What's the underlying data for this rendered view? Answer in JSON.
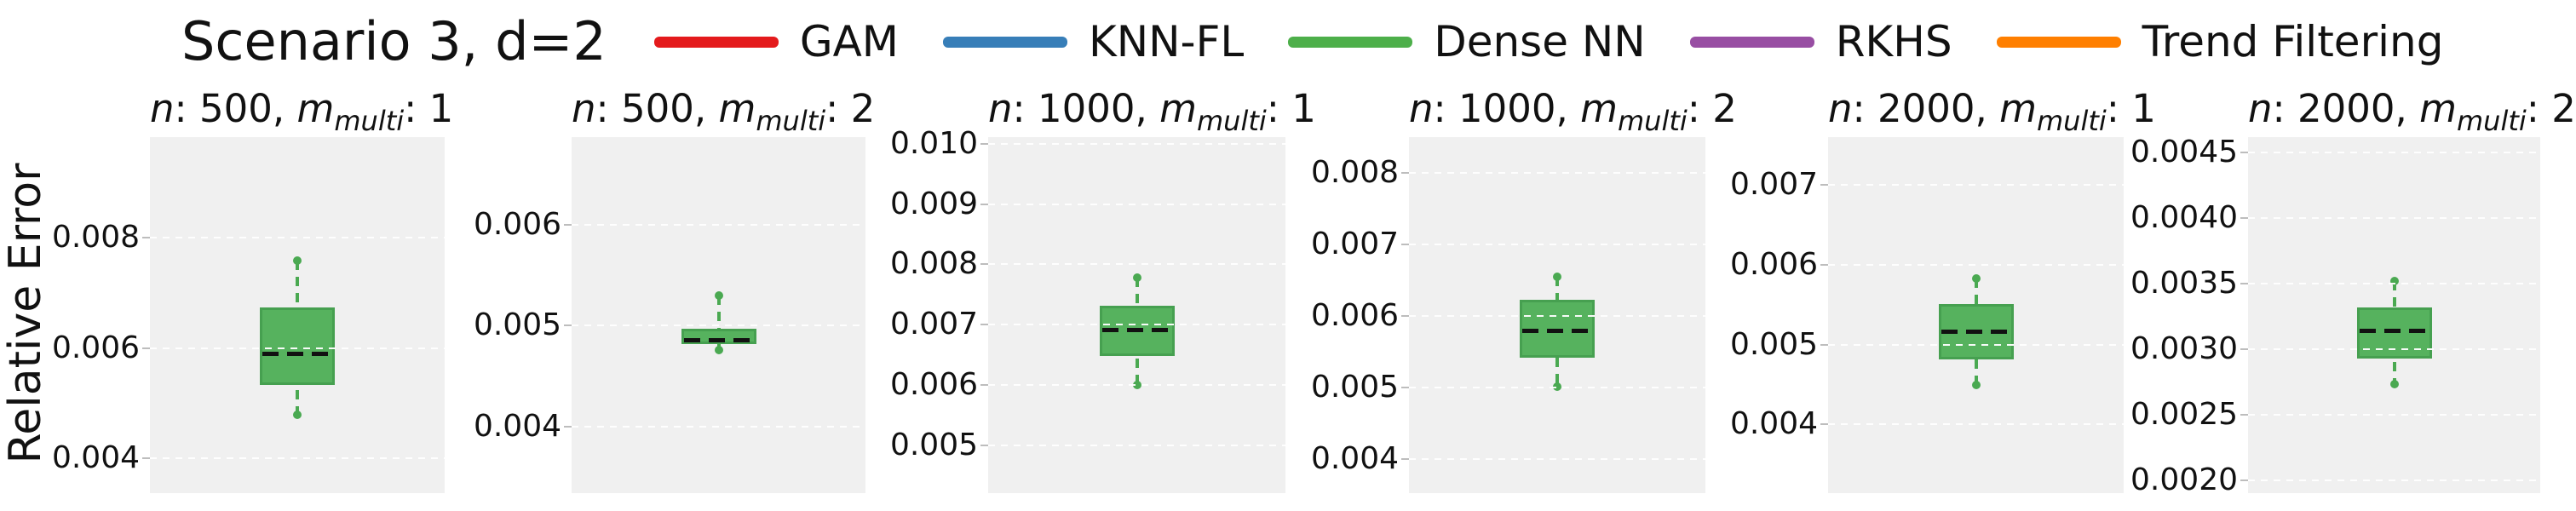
{
  "figure": {
    "title": "Scenario 3, d=2",
    "ylabel": "Relative Error",
    "legend": [
      {
        "label": "GAM",
        "color": "#e41a1c"
      },
      {
        "label": "KNN-FL",
        "color": "#377eb8"
      },
      {
        "label": "Dense NN",
        "color": "#4daf4a"
      },
      {
        "label": "RKHS",
        "color": "#984ea3"
      },
      {
        "label": "Trend Filtering",
        "color": "#ff7f00"
      }
    ],
    "tokens": {
      "n_label": "n",
      "m_label": "m",
      "m_sub": "multi",
      "sep_colon": ": ",
      "sep_comma": ", "
    }
  },
  "chart_data": {
    "type": "boxplot",
    "title": "Scenario 3, d=2",
    "ylabel": "Relative Error",
    "legend_entries": [
      "GAM",
      "KNN-FL",
      "Dense NN",
      "RKHS",
      "Trend Filtering"
    ],
    "visible_series": "Dense NN",
    "grid": true,
    "legend_position": "top",
    "colors": {
      "box_fill": "#56b25e",
      "box_edge": "#46a050",
      "whisker": "#4aa951",
      "median_dash": "#111111",
      "plot_bg": "#f0f0f0",
      "gridline": "#ffffff"
    },
    "subplots": [
      {
        "title": "n: 500, m_multi: 1",
        "n": "500",
        "m_multi": "1",
        "ylim": [
          0.00337,
          0.00982
        ],
        "yticks": [
          0.004,
          0.006,
          0.008
        ],
        "ytick_labels": [
          "0.004",
          "0.006",
          "0.008"
        ],
        "box": {
          "whislo": 0.00479,
          "q1": 0.00533,
          "med": 0.00589,
          "q3": 0.00673,
          "whishi": 0.00758
        }
      },
      {
        "title": "n: 500, m_multi: 2",
        "n": "500",
        "m_multi": "2",
        "ylim": [
          0.00334,
          0.00687
        ],
        "yticks": [
          0.004,
          0.005,
          0.006
        ],
        "ytick_labels": [
          "0.004",
          "0.005",
          "0.006"
        ],
        "box": {
          "whislo": 0.00476,
          "q1": 0.00482,
          "med": 0.00486,
          "q3": 0.00497,
          "whishi": 0.0053
        }
      },
      {
        "title": "n: 1000, m_multi: 1",
        "n": "1000",
        "m_multi": "1",
        "ylim": [
          0.00421,
          0.01011
        ],
        "yticks": [
          0.005,
          0.006,
          0.007,
          0.008,
          0.009,
          0.01
        ],
        "ytick_labels": [
          "0.005",
          "0.006",
          "0.007",
          "0.008",
          "0.009",
          "0.010"
        ],
        "box": {
          "whislo": 0.006,
          "q1": 0.00648,
          "med": 0.00692,
          "q3": 0.00731,
          "whishi": 0.00778
        }
      },
      {
        "title": "n: 1000, m_multi: 2",
        "n": "1000",
        "m_multi": "2",
        "ylim": [
          0.00353,
          0.0085
        ],
        "yticks": [
          0.004,
          0.005,
          0.006,
          0.007,
          0.008
        ],
        "ytick_labels": [
          "0.004",
          "0.005",
          "0.006",
          "0.007",
          "0.008"
        ],
        "box": {
          "whislo": 0.00502,
          "q1": 0.00542,
          "med": 0.00579,
          "q3": 0.00623,
          "whishi": 0.00655
        }
      },
      {
        "title": "n: 2000, m_multi: 1",
        "n": "2000",
        "m_multi": "1",
        "ylim": [
          0.00314,
          0.0076
        ],
        "yticks": [
          0.004,
          0.005,
          0.006,
          0.007
        ],
        "ytick_labels": [
          "0.004",
          "0.005",
          "0.006",
          "0.007"
        ],
        "box": {
          "whislo": 0.0045,
          "q1": 0.00482,
          "med": 0.00516,
          "q3": 0.00551,
          "whishi": 0.00583
        }
      },
      {
        "title": "n: 2000, m_multi: 2",
        "n": "2000",
        "m_multi": "2",
        "ylim": [
          0.0019,
          0.00462
        ],
        "yticks": [
          0.002,
          0.0025,
          0.003,
          0.0035,
          0.004,
          0.0045
        ],
        "ytick_labels": [
          "0.0020",
          "0.0025",
          "0.0030",
          "0.0035",
          "0.0040",
          "0.0045"
        ],
        "box": {
          "whislo": 0.00273,
          "q1": 0.00293,
          "med": 0.00314,
          "q3": 0.00332,
          "whishi": 0.00352
        }
      }
    ]
  }
}
